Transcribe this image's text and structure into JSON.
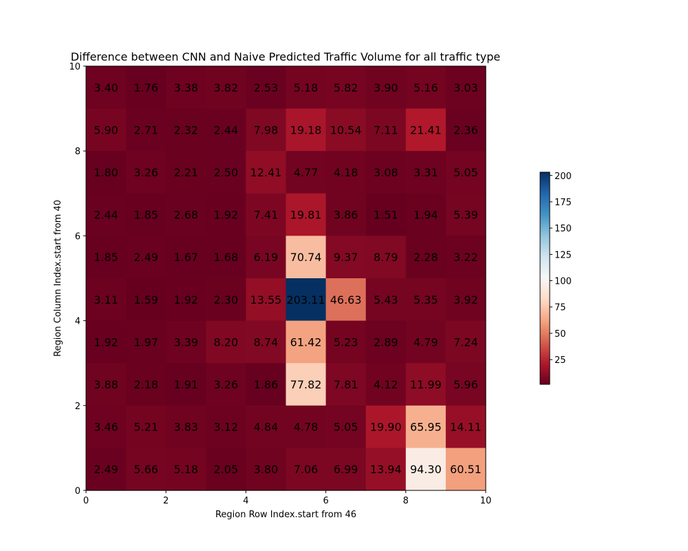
{
  "chart_data": {
    "type": "heatmap",
    "title": "Difference between CNN and Naive Predicted Traffic Volume for all traffic type",
    "xlabel": "Region Row Index.start from 46",
    "ylabel": "Region Column Index.start from 40",
    "xlim": [
      0,
      10
    ],
    "ylim": [
      0,
      10
    ],
    "xticks": [
      "0",
      "2",
      "4",
      "6",
      "8",
      "10"
    ],
    "yticks": [
      "0",
      "2",
      "4",
      "6",
      "8",
      "10"
    ],
    "colormap": "RdBu",
    "colors": {
      "low": "#67001f",
      "mid": "#f7f7f7",
      "high": "#053061"
    },
    "value_range": [
      1.51,
      203.11
    ],
    "colorbar": {
      "ticks": [
        "25",
        "50",
        "75",
        "100",
        "125",
        "150",
        "175",
        "200"
      ],
      "tick_values": [
        25,
        50,
        75,
        100,
        125,
        150,
        175,
        200
      ]
    },
    "rows": [
      [
        "3.40",
        "1.76",
        "3.38",
        "3.82",
        "2.53",
        "5.18",
        "5.82",
        "3.90",
        "5.16",
        "3.03"
      ],
      [
        "5.90",
        "2.71",
        "2.32",
        "2.44",
        "7.98",
        "19.18",
        "10.54",
        "7.11",
        "21.41",
        "2.36"
      ],
      [
        "1.80",
        "3.26",
        "2.21",
        "2.50",
        "12.41",
        "4.77",
        "4.18",
        "3.08",
        "3.31",
        "5.05"
      ],
      [
        "2.44",
        "1.85",
        "2.68",
        "1.92",
        "7.41",
        "19.81",
        "3.86",
        "1.51",
        "1.94",
        "5.39"
      ],
      [
        "1.85",
        "2.49",
        "1.67",
        "1.68",
        "6.19",
        "70.74",
        "9.37",
        "8.79",
        "2.28",
        "3.22"
      ],
      [
        "3.11",
        "1.59",
        "1.92",
        "2.30",
        "13.55",
        "203.11",
        "46.63",
        "5.43",
        "5.35",
        "3.92"
      ],
      [
        "1.92",
        "1.97",
        "3.39",
        "8.20",
        "8.74",
        "61.42",
        "5.23",
        "2.89",
        "4.79",
        "7.24"
      ],
      [
        "3.88",
        "2.18",
        "1.91",
        "3.26",
        "1.86",
        "77.82",
        "7.81",
        "4.12",
        "11.99",
        "5.96"
      ],
      [
        "3.46",
        "5.21",
        "3.83",
        "3.12",
        "4.84",
        "4.78",
        "5.05",
        "19.90",
        "65.95",
        "14.11"
      ],
      [
        "2.49",
        "5.66",
        "5.18",
        "2.05",
        "3.80",
        "7.06",
        "6.99",
        "13.94",
        "94.30",
        "60.51"
      ]
    ]
  }
}
